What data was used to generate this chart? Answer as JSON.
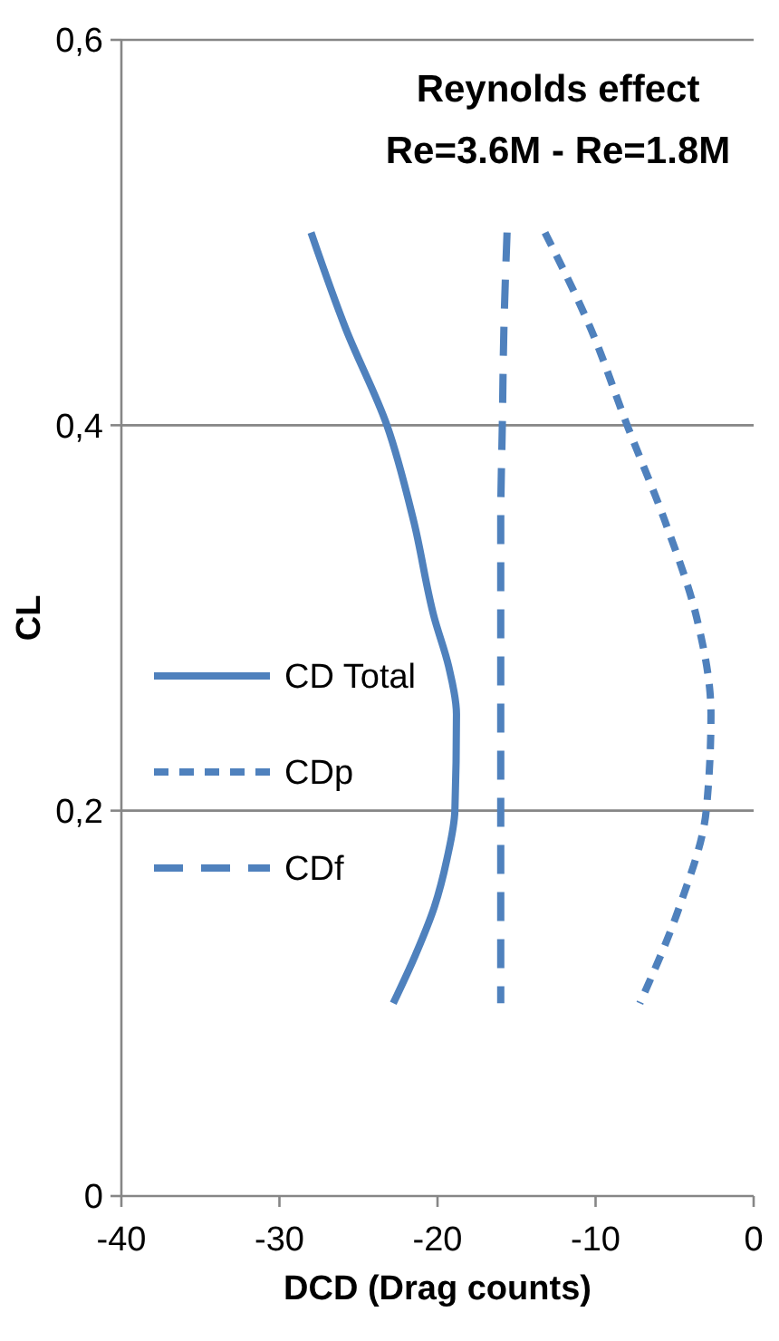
{
  "chart_data": {
    "type": "line",
    "title": "Reynolds effect",
    "subtitle": "Re=3.6M - Re=1.8M",
    "xlabel": "DCD (Drag counts)",
    "ylabel": "CL",
    "xlim": [
      -40,
      0
    ],
    "xticks": [
      -40,
      -30,
      -20,
      -10,
      0
    ],
    "ylim": [
      0,
      0.6
    ],
    "yticks": [
      {
        "value": 0,
        "label": "0"
      },
      {
        "value": 0.2,
        "label": "0,2"
      },
      {
        "value": 0.4,
        "label": "0,4"
      },
      {
        "value": 0.6,
        "label": "0,6"
      }
    ],
    "grid": "y",
    "legend": "left",
    "marker": "none",
    "series": [
      {
        "name": "CD Total",
        "color": "#4f81bd",
        "line_style": "solid",
        "x": [
          -28,
          -25.8,
          -23.2,
          -21.5,
          -20.2,
          -19.3,
          -18.8,
          -18.9,
          -19.4,
          -20.2,
          -21.4,
          -22.8
        ],
        "values": [
          0.5,
          0.45,
          0.4,
          0.35,
          0.3,
          0.275,
          0.25,
          0.2,
          0.175,
          0.15,
          0.125,
          0.1
        ]
      },
      {
        "name": "CDp",
        "color": "#4f81bd",
        "line_style": "dashed",
        "x": [
          -13.2,
          -10.3,
          -8,
          -5.6,
          -3.6,
          -2.7,
          -3,
          -4.7,
          -7.2
        ],
        "values": [
          0.5,
          0.45,
          0.4,
          0.35,
          0.3,
          0.25,
          0.2,
          0.15,
          0.1
        ]
      },
      {
        "name": "CDf",
        "color": "#4f81bd",
        "line_style": "dashed",
        "x": [
          -15.6,
          -15.8,
          -15.9,
          -16,
          -16,
          -16,
          -16,
          -16,
          -16
        ],
        "values": [
          0.5,
          0.45,
          0.4,
          0.35,
          0.3,
          0.25,
          0.2,
          0.15,
          0.1
        ]
      }
    ]
  }
}
